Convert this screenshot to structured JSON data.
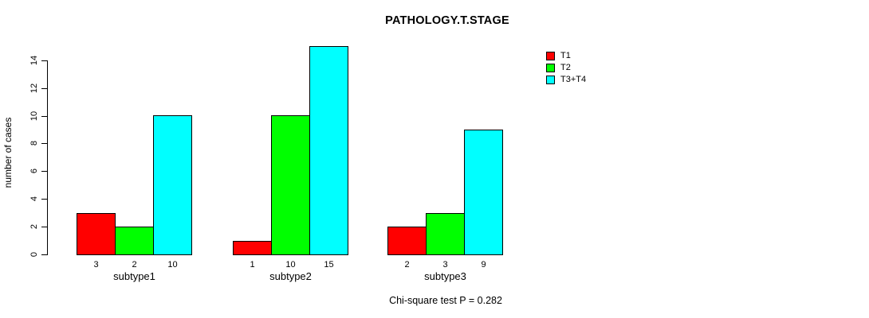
{
  "chart_data": {
    "type": "bar",
    "title": "PATHOLOGY.T.STAGE",
    "ylabel": "number of cases",
    "xlabel": "",
    "categories": [
      "subtype1",
      "subtype2",
      "subtype3"
    ],
    "series": [
      {
        "name": "T1",
        "color": "#FF0000",
        "values": [
          3,
          1,
          2
        ]
      },
      {
        "name": "T2",
        "color": "#00FF00",
        "values": [
          2,
          10,
          3
        ]
      },
      {
        "name": "T3+T4",
        "color": "#00FFFF",
        "values": [
          10,
          15,
          9
        ]
      }
    ],
    "bar_value_labels": [
      [
        "3",
        "2",
        "10"
      ],
      [
        "1",
        "10",
        "15"
      ],
      [
        "2",
        "3",
        "9"
      ]
    ],
    "yticks": [
      0,
      2,
      4,
      6,
      8,
      10,
      12,
      14
    ],
    "ylim": [
      0,
      15
    ],
    "grid": "off",
    "legend_position": "top-right",
    "annotation": "Chi-square test P = 0.282",
    "axis_color": "#000000",
    "background_color": "#FFFFFF"
  }
}
